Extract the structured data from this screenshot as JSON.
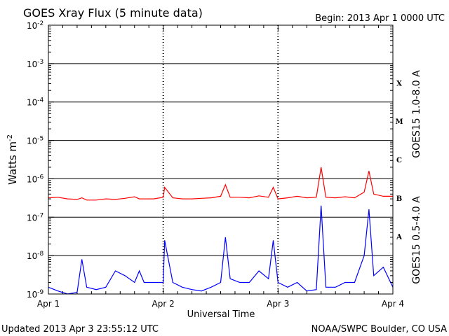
{
  "colors": {
    "long": "#ff0000",
    "short": "#0000ff",
    "axis": "#000000",
    "background": "#ffffff"
  },
  "chart_data": {
    "type": "line",
    "title": "GOES Xray Flux (5 minute data)",
    "begin": "Begin:  2013 Apr 1 0000 UTC",
    "xlabel": "Universal Time",
    "ylabel": "Watts m",
    "ylabel_sup": "-2",
    "yscale": "log",
    "ylim": [
      1e-09,
      0.01
    ],
    "xlim_hours": [
      0,
      72
    ],
    "ytick_labels": [
      {
        "base": "10",
        "exp": "-9"
      },
      {
        "base": "10",
        "exp": "-8"
      },
      {
        "base": "10",
        "exp": "-7"
      },
      {
        "base": "10",
        "exp": "-6"
      },
      {
        "base": "10",
        "exp": "-5"
      },
      {
        "base": "10",
        "exp": "-4"
      },
      {
        "base": "10",
        "exp": "-3"
      },
      {
        "base": "10",
        "exp": "-2"
      }
    ],
    "xtick_labels": [
      "Apr 1",
      "Apr 2",
      "Apr 3",
      "Apr 4"
    ],
    "flare_classes": [
      {
        "label": "A",
        "level": 1e-08
      },
      {
        "label": "B",
        "level": 1e-07
      },
      {
        "label": "C",
        "level": 1e-06
      },
      {
        "label": "M",
        "level": 1e-05
      },
      {
        "label": "X",
        "level": 0.0001
      }
    ],
    "series": [
      {
        "name": "GOES15 1.0-8.0 A",
        "color": "#ff0000",
        "x_hours": [
          0,
          2,
          4,
          6,
          7,
          8,
          10,
          12,
          14,
          16,
          18,
          19,
          20,
          22,
          24,
          24.3,
          26,
          28,
          30,
          32,
          34,
          36,
          37,
          38,
          40,
          42,
          44,
          46,
          47,
          48,
          50,
          52,
          54,
          56,
          57,
          58,
          60,
          62,
          64,
          66,
          67,
          68,
          70,
          72
        ],
        "values": [
          3.2e-07,
          3.3e-07,
          3e-07,
          2.9e-07,
          3.2e-07,
          2.8e-07,
          2.8e-07,
          3e-07,
          2.9e-07,
          3.1e-07,
          3.4e-07,
          3e-07,
          3e-07,
          3e-07,
          3.3e-07,
          6e-07,
          3.2e-07,
          3e-07,
          3e-07,
          3.1e-07,
          3.2e-07,
          3.5e-07,
          7e-07,
          3.3e-07,
          3.3e-07,
          3.2e-07,
          3.6e-07,
          3.3e-07,
          6e-07,
          3e-07,
          3.2e-07,
          3.5e-07,
          3.2e-07,
          3.3e-07,
          2e-06,
          3.3e-07,
          3.2e-07,
          3.4e-07,
          3.2e-07,
          4.5e-07,
          1.6e-06,
          4e-07,
          3.5e-07,
          3.5e-07
        ]
      },
      {
        "name": "GOES15 0.5-4.0 A",
        "color": "#0000ff",
        "x_hours": [
          0,
          2,
          4,
          6,
          7,
          8,
          10,
          12,
          14,
          16,
          18,
          19,
          20,
          22,
          24,
          24.3,
          26,
          28,
          30,
          32,
          34,
          36,
          37,
          38,
          40,
          42,
          44,
          46,
          47,
          48,
          50,
          52,
          54,
          56,
          57,
          58,
          60,
          62,
          64,
          66,
          67,
          68,
          70,
          72
        ],
        "values": [
          1.5e-09,
          1.2e-09,
          1e-09,
          1.1e-09,
          8e-09,
          1.5e-09,
          1.3e-09,
          1.5e-09,
          4e-09,
          3e-09,
          2e-09,
          4e-09,
          2e-09,
          2e-09,
          2e-09,
          2.5e-08,
          2e-09,
          1.5e-09,
          1.3e-09,
          1.2e-09,
          1.5e-09,
          2e-09,
          3e-08,
          2.5e-09,
          2e-09,
          2e-09,
          4e-09,
          2.5e-09,
          2.5e-08,
          2e-09,
          1.5e-09,
          2e-09,
          1.2e-09,
          1.3e-09,
          2e-07,
          1.5e-09,
          1.5e-09,
          2e-09,
          2e-09,
          1e-08,
          1.6e-07,
          3e-09,
          5e-09,
          1.5e-09
        ]
      }
    ],
    "footer_left": "Updated 2013 Apr  3 23:55:12 UTC",
    "footer_right": "NOAA/SWPC Boulder, CO USA"
  }
}
